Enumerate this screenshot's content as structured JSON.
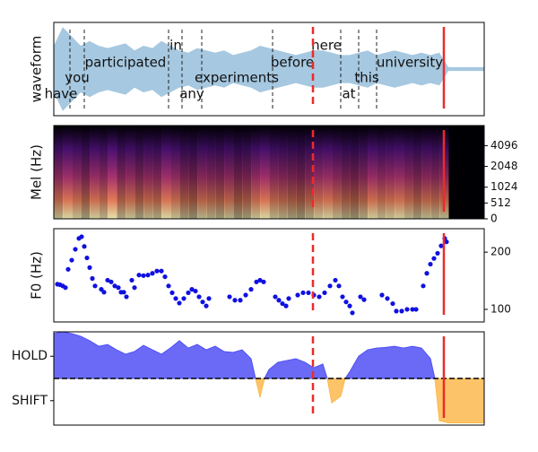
{
  "chart_data": [
    {
      "type": "waveform",
      "ylabel": "waveform",
      "xlim": [
        0,
        480
      ],
      "ylim": [
        -1,
        1
      ],
      "color": "#a6c8e0",
      "x": [
        0,
        10,
        20,
        30,
        40,
        50,
        60,
        70,
        80,
        90,
        100,
        110,
        120,
        130,
        140,
        150,
        160,
        170,
        180,
        190,
        200,
        210,
        220,
        230,
        240,
        250,
        260,
        270,
        280,
        290,
        300,
        310,
        320,
        330,
        340,
        350,
        360,
        370,
        380,
        390,
        400,
        410,
        420,
        430,
        440,
        450,
        460,
        470,
        480
      ],
      "values": [
        0.5,
        0.9,
        0.7,
        0.5,
        0.6,
        0.5,
        0.45,
        0.5,
        0.55,
        0.4,
        0.5,
        0.45,
        0.6,
        0.5,
        0.4,
        0.35,
        0.45,
        0.4,
        0.35,
        0.4,
        0.3,
        0.35,
        0.4,
        0.5,
        0.45,
        0.4,
        0.35,
        0.3,
        0.35,
        0.4,
        0.4,
        0.35,
        0.3,
        0.3,
        0.35,
        0.4,
        0.3,
        0.35,
        0.4,
        0.35,
        0.3,
        0.35,
        0.3,
        0.35,
        0.04,
        0.04,
        0.04,
        0.04,
        0.04
      ],
      "words": [
        {
          "text": "have",
          "x": 8
        },
        {
          "text": "you",
          "x": 26
        },
        {
          "text": "participated",
          "x": 80
        },
        {
          "text": "in",
          "x": 136
        },
        {
          "text": "any",
          "x": 154
        },
        {
          "text": "experiments",
          "x": 204
        },
        {
          "text": "before",
          "x": 266
        },
        {
          "text": "here",
          "x": 304
        },
        {
          "text": "at",
          "x": 329
        },
        {
          "text": "this",
          "x": 349
        },
        {
          "text": "university",
          "x": 397
        }
      ],
      "boundaries": [
        18,
        34,
        128,
        143,
        165,
        244,
        320,
        340,
        360
      ],
      "dashed_marker": 289,
      "solid_marker": 435,
      "marker_color": "#ee2a2a"
    },
    {
      "type": "heatmap",
      "ylabel": "Mel (Hz)",
      "xlim": [
        0,
        480
      ],
      "ylim": [
        0,
        8000
      ],
      "yscale": "mel",
      "ytick_side": "right",
      "yticks": [
        0,
        512,
        1024,
        2048,
        4096
      ],
      "x": [
        0,
        10,
        20,
        30,
        40,
        50,
        60,
        70,
        80,
        90,
        100,
        110,
        120,
        130,
        140,
        150,
        160,
        170,
        180,
        190,
        200,
        210,
        220,
        230,
        240,
        250,
        260,
        270,
        280,
        290,
        300,
        310,
        320,
        330,
        340,
        350,
        360,
        370,
        380,
        390,
        400,
        410,
        420,
        430,
        440,
        450,
        460,
        470
      ],
      "values": [
        0.7,
        0.85,
        0.75,
        0.6,
        0.8,
        0.7,
        0.9,
        0.65,
        0.75,
        0.6,
        0.7,
        0.65,
        0.85,
        0.75,
        0.6,
        0.55,
        0.7,
        0.65,
        0.6,
        0.7,
        0.55,
        0.6,
        0.75,
        0.85,
        0.7,
        0.65,
        0.6,
        0.55,
        0.65,
        0.75,
        0.8,
        0.7,
        0.6,
        0.55,
        0.65,
        0.8,
        0.7,
        0.75,
        0.8,
        0.7,
        0.6,
        0.7,
        0.65,
        0.7,
        0,
        0,
        0,
        0
      ],
      "dashed_marker": 289,
      "solid_marker": 435,
      "marker_color": "#ee2a2a"
    },
    {
      "type": "scatter",
      "ylabel": "F0 (Hz)",
      "xlim": [
        0,
        480
      ],
      "ylim": [
        78,
        241
      ],
      "ytick_side": "right",
      "yticks": [
        100,
        200
      ],
      "color": "#1010e0",
      "x": [
        4,
        7,
        10,
        13,
        16,
        20,
        24,
        28,
        31,
        34,
        37,
        40,
        43,
        46,
        53,
        56,
        60,
        64,
        68,
        72,
        75,
        78,
        81,
        87,
        90,
        95,
        100,
        105,
        110,
        115,
        120,
        124,
        128,
        132,
        136,
        140,
        145,
        150,
        154,
        158,
        162,
        166,
        170,
        173,
        196,
        202,
        208,
        214,
        220,
        226,
        230,
        234,
        247,
        251,
        255,
        259,
        262,
        272,
        278,
        284,
        290,
        296,
        302,
        308,
        314,
        318,
        322,
        326,
        330,
        333,
        342,
        346,
        366,
        372,
        378,
        382,
        388,
        394,
        400,
        404,
        412,
        416,
        420,
        424,
        428,
        432,
        436,
        438
      ],
      "values": [
        144,
        143,
        141,
        138,
        170,
        186,
        205,
        224,
        227,
        210,
        190,
        173,
        154,
        141,
        135,
        130,
        151,
        148,
        141,
        138,
        130,
        130,
        122,
        151,
        138,
        160,
        159,
        160,
        163,
        167,
        167,
        157,
        141,
        129,
        119,
        111,
        119,
        129,
        135,
        132,
        122,
        113,
        106,
        119,
        122,
        116,
        116,
        125,
        135,
        148,
        151,
        148,
        122,
        116,
        110,
        106,
        119,
        125,
        129,
        129,
        125,
        122,
        129,
        141,
        151,
        141,
        122,
        113,
        106,
        94,
        122,
        117,
        125,
        119,
        110,
        97,
        97,
        100,
        100,
        100,
        141,
        163,
        179,
        189,
        198,
        211,
        224,
        218
      ],
      "dashed_marker": 289,
      "solid_marker": 435,
      "marker_color": "#ee2a2a"
    },
    {
      "type": "area",
      "xlim": [
        0,
        480
      ],
      "ylim": [
        -2.1,
        2.1
      ],
      "ytick_side": "left",
      "yticks": [
        {
          "value": 1,
          "label": "HOLD"
        },
        {
          "value": -1,
          "label": "SHIFT"
        }
      ],
      "hline": 0,
      "x": [
        0,
        10,
        20,
        30,
        40,
        50,
        60,
        70,
        80,
        90,
        100,
        110,
        120,
        130,
        140,
        150,
        160,
        170,
        180,
        190,
        200,
        210,
        220,
        230,
        240,
        250,
        260,
        270,
        280,
        290,
        300,
        310,
        320,
        330,
        340,
        350,
        360,
        370,
        380,
        390,
        400,
        410,
        420,
        430,
        440,
        450,
        460,
        470,
        480
      ],
      "series": [
        {
          "color": "#5050f5",
          "values": [
            2.02,
            2.1,
            2.02,
            1.9,
            1.7,
            1.45,
            1.53,
            1.29,
            1.09,
            1.21,
            1.49,
            1.29,
            1.09,
            1.37,
            1.7,
            1.37,
            1.53,
            1.29,
            1.45,
            1.21,
            1.17,
            1.29,
            0.89,
            null,
            0.4,
            0.73,
            0.81,
            0.89,
            0.73,
            0.48,
            0.65,
            null,
            null,
            0.3,
            1.0,
            1.29,
            1.37,
            1.4,
            1.45,
            1.37,
            1.45,
            1.37,
            0.9,
            null,
            null,
            null,
            null,
            null,
            null
          ]
        },
        {
          "color": "#fdb94e",
          "values": [
            null,
            null,
            null,
            null,
            null,
            null,
            null,
            null,
            null,
            null,
            null,
            null,
            null,
            null,
            null,
            null,
            null,
            null,
            null,
            null,
            null,
            null,
            null,
            -0.85,
            null,
            null,
            null,
            null,
            null,
            null,
            null,
            -1.1,
            -0.8,
            null,
            null,
            null,
            null,
            null,
            null,
            null,
            null,
            null,
            null,
            -1.9,
            -2.0,
            -2.0,
            -2.0,
            -2.0,
            -2.0
          ]
        }
      ],
      "dashed_marker": 289,
      "solid_marker": 435,
      "marker_color": "#ee2a2a"
    }
  ]
}
